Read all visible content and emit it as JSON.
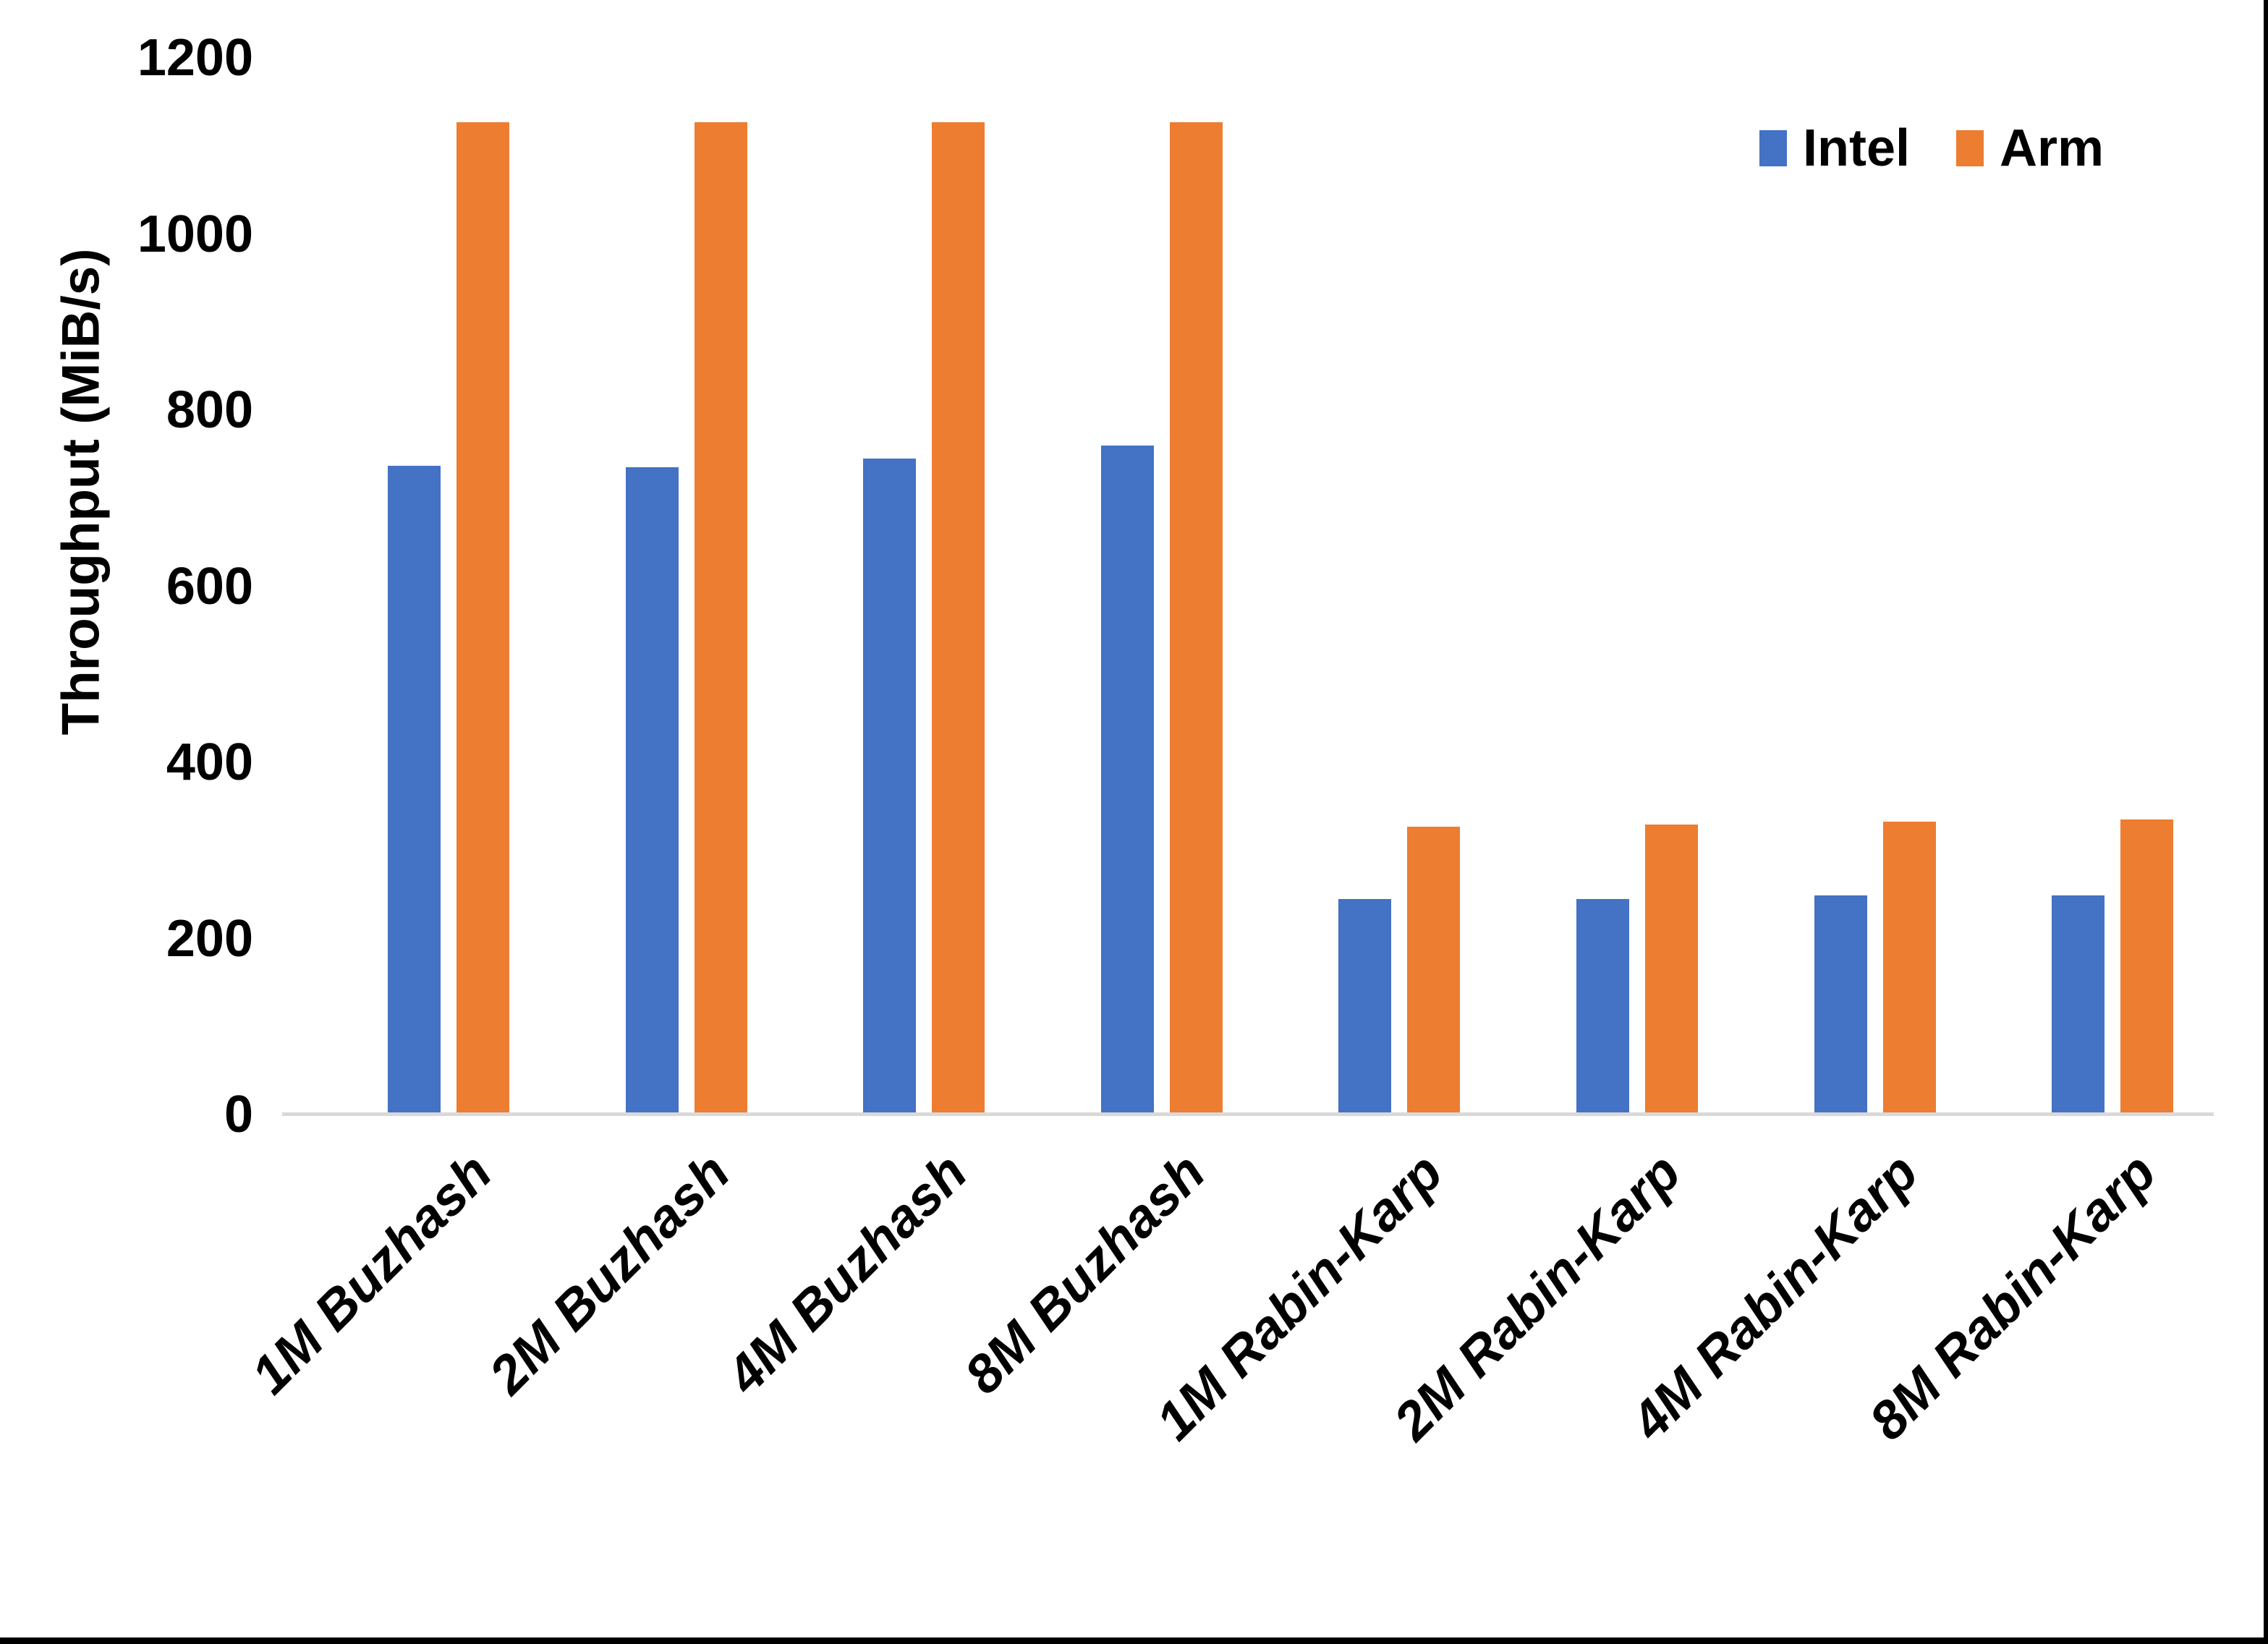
{
  "chart_data": {
    "type": "bar",
    "title": "",
    "xlabel": "",
    "ylabel": "Throughput (MiB/s)",
    "categories": [
      "1M Buzhash",
      "2M Buzhash",
      "4M Buzhash",
      "8M Buzhash",
      "1M Rabin-Karp",
      "2M Rabin-Karp",
      "4M Rabin-Karp",
      "8M Rabin-Karp"
    ],
    "series": [
      {
        "name": "Intel",
        "color": "#4472C4",
        "values": [
          737,
          735,
          745,
          760,
          245,
          245,
          249,
          249
        ]
      },
      {
        "name": "Arm",
        "color": "#ED7D31",
        "values": [
          1127,
          1127,
          1127,
          1127,
          327,
          329,
          333,
          335
        ]
      }
    ],
    "ylim": [
      0,
      1200
    ],
    "yticks": [
      0,
      200,
      400,
      600,
      800,
      1000,
      1200
    ],
    "grid": false,
    "legend_position": "top-right",
    "axis_line_color": "#D9D9D9",
    "category_label_rotation_deg": 45,
    "category_label_style": "italic"
  }
}
